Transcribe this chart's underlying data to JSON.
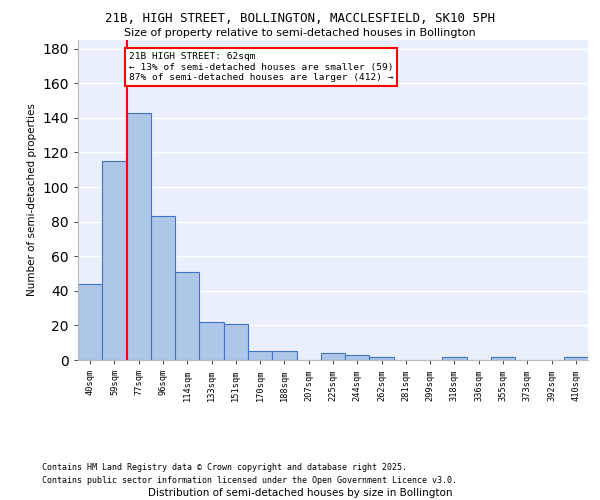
{
  "title1": "21B, HIGH STREET, BOLLINGTON, MACCLESFIELD, SK10 5PH",
  "title2": "Size of property relative to semi-detached houses in Bollington",
  "xlabel": "Distribution of semi-detached houses by size in Bollington",
  "ylabel": "Number of semi-detached properties",
  "categories": [
    "40sqm",
    "59sqm",
    "77sqm",
    "96sqm",
    "114sqm",
    "133sqm",
    "151sqm",
    "170sqm",
    "188sqm",
    "207sqm",
    "225sqm",
    "244sqm",
    "262sqm",
    "281sqm",
    "299sqm",
    "318sqm",
    "336sqm",
    "355sqm",
    "373sqm",
    "392sqm",
    "410sqm"
  ],
  "values": [
    44,
    115,
    143,
    83,
    51,
    22,
    21,
    5,
    5,
    0,
    4,
    3,
    2,
    0,
    0,
    2,
    0,
    2,
    0,
    0,
    2
  ],
  "bar_color": "#aec6e8",
  "bar_edge_color": "#4472c4",
  "annotation_title": "21B HIGH STREET: 62sqm",
  "annotation_line1": "← 13% of semi-detached houses are smaller (59)",
  "annotation_line2": "87% of semi-detached houses are larger (412) →",
  "footer1": "Contains HM Land Registry data © Crown copyright and database right 2025.",
  "footer2": "Contains public sector information licensed under the Open Government Licence v3.0.",
  "ylim": [
    0,
    185
  ],
  "plot_bg_color": "#eaf0fb"
}
